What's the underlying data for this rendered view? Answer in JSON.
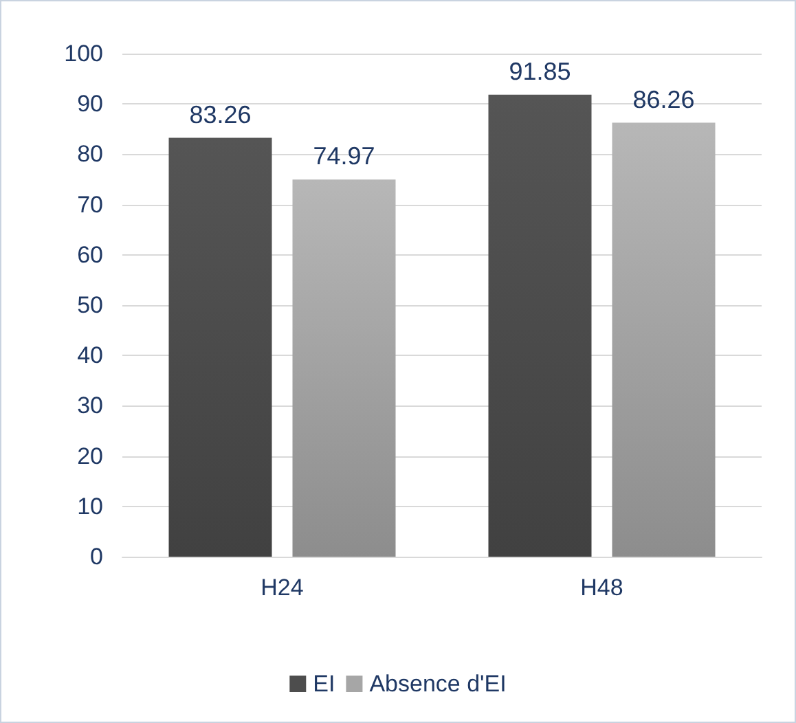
{
  "chart_data": {
    "type": "bar",
    "categories": [
      "H24",
      "H48"
    ],
    "series": [
      {
        "name": "EI",
        "color": "#4d4d4d",
        "values": [
          83.26,
          91.85
        ]
      },
      {
        "name": "Absence d'EI",
        "color": "#a6a6a6",
        "values": [
          74.97,
          86.26
        ]
      }
    ],
    "ylim": [
      0,
      100
    ],
    "yticks": [
      0,
      10,
      20,
      30,
      40,
      50,
      60,
      70,
      80,
      90,
      100
    ],
    "grid": "y",
    "legend": "bottom",
    "data_labels": true
  }
}
